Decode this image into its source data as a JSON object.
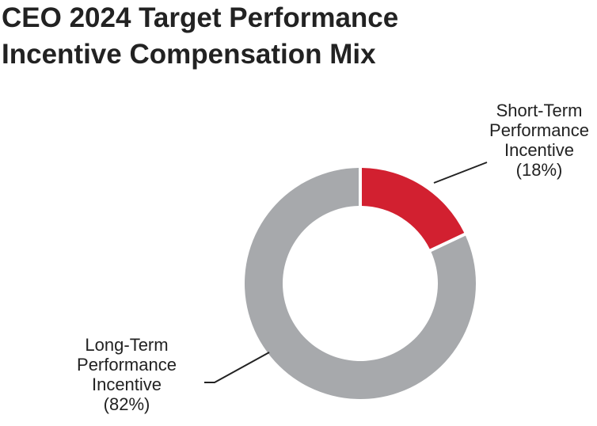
{
  "chart_data": {
    "type": "pie",
    "style": "donut",
    "title_lines": [
      "CEO 2024 Target Performance",
      "Incentive Compensation Mix"
    ],
    "slices": [
      {
        "label_lines": [
          "Short-Term",
          "Performance",
          "Incentive",
          "(18%)"
        ],
        "value": 18,
        "color": "#d22030"
      },
      {
        "label_lines": [
          "Long-Term",
          "Performance",
          "Incentive",
          "(82%)"
        ],
        "value": 82,
        "color": "#a7a9ac"
      }
    ]
  }
}
